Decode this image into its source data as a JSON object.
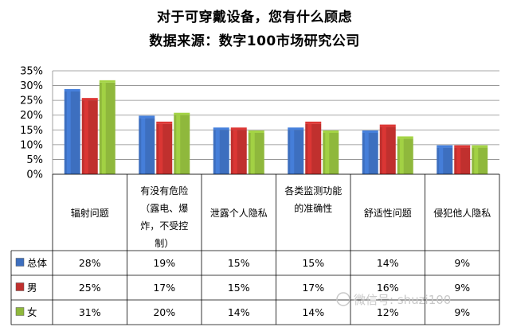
{
  "title": "对于可穿戴设备，您有什么顾虑",
  "subtitle": "数据来源：数字100市场研究公司",
  "watermark": "微信号: shuzi100",
  "chart_data": {
    "type": "bar",
    "title": "对于可穿戴设备，您有什么顾虑",
    "subtitle": "数据来源：数字100市场研究公司",
    "categories": [
      [
        "辐射问题"
      ],
      [
        "有没有危险",
        "（露电、爆",
        "炸，不受控",
        "制）"
      ],
      [
        "泄露个人隐私"
      ],
      [
        "各类监测功能",
        "的准确性"
      ],
      [
        "舒适性问题"
      ],
      [
        "侵犯他人隐私"
      ]
    ],
    "series": [
      {
        "name": "总体",
        "color": "#3D6FBF",
        "values": [
          28,
          19,
          15,
          15,
          14,
          9
        ],
        "labels": [
          "28%",
          "19%",
          "15%",
          "15%",
          "14%",
          "9%"
        ]
      },
      {
        "name": "男",
        "color": "#C0302E",
        "values": [
          25,
          17,
          15,
          17,
          16,
          9
        ],
        "labels": [
          "25%",
          "17%",
          "15%",
          "17%",
          "16%",
          "9%"
        ]
      },
      {
        "name": "女",
        "color": "#8FB83C",
        "values": [
          31,
          20,
          14,
          14,
          12,
          9
        ],
        "labels": [
          "31%",
          "20%",
          "14%",
          "14%",
          "12%",
          "9%"
        ]
      }
    ],
    "y_ticks": [
      "0%",
      "5%",
      "10%",
      "15%",
      "20%",
      "25%",
      "30%",
      "35%"
    ],
    "ylim": [
      0,
      35
    ],
    "legend": "data-table",
    "grid": true
  }
}
